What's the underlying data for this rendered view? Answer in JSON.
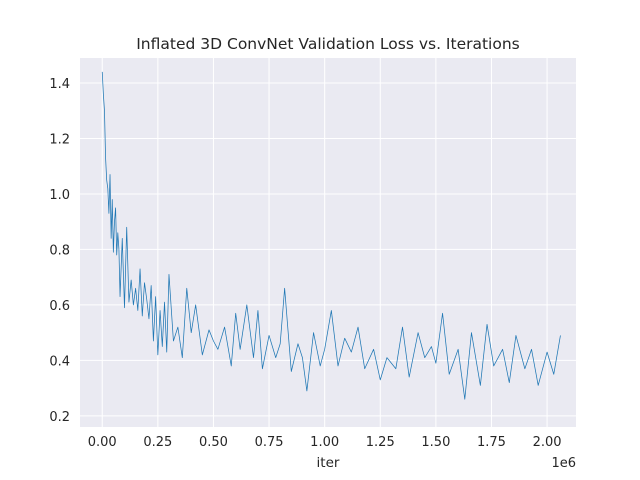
{
  "chart_data": {
    "type": "line",
    "title": "Inflated 3D ConvNet Validation Loss vs. Iterations",
    "xlabel": "iter",
    "ylabel": "",
    "x_offset_label": "1e6",
    "xlim": [
      -0.1,
      2.13
    ],
    "ylim": [
      0.16,
      1.49
    ],
    "x_ticks": [
      0.0,
      0.25,
      0.5,
      0.75,
      1.0,
      1.25,
      1.5,
      1.75,
      2.0
    ],
    "x_tick_labels": [
      "0.00",
      "0.25",
      "0.50",
      "0.75",
      "1.00",
      "1.25",
      "1.50",
      "1.75",
      "2.00"
    ],
    "y_ticks": [
      0.2,
      0.4,
      0.6,
      0.8,
      1.0,
      1.2,
      1.4
    ],
    "y_tick_labels": [
      "0.2",
      "0.4",
      "0.6",
      "0.8",
      "1.0",
      "1.2",
      "1.4"
    ],
    "grid": true,
    "legend": "none",
    "line_color": "#1f77b4",
    "background_color": "#eaeaf2",
    "series": [
      {
        "x": [
          0.0,
          0.005,
          0.01,
          0.015,
          0.02,
          0.025,
          0.03,
          0.035,
          0.04,
          0.045,
          0.05,
          0.055,
          0.06,
          0.065,
          0.07,
          0.075,
          0.08,
          0.09,
          0.1,
          0.11,
          0.12,
          0.13,
          0.14,
          0.15,
          0.16,
          0.17,
          0.18,
          0.19,
          0.2,
          0.21,
          0.22,
          0.23,
          0.24,
          0.25,
          0.26,
          0.27,
          0.28,
          0.29,
          0.3,
          0.32,
          0.34,
          0.36,
          0.38,
          0.4,
          0.42,
          0.45,
          0.48,
          0.5,
          0.52,
          0.55,
          0.58,
          0.6,
          0.62,
          0.65,
          0.68,
          0.7,
          0.72,
          0.75,
          0.78,
          0.8,
          0.82,
          0.85,
          0.88,
          0.9,
          0.92,
          0.95,
          0.98,
          1.0,
          1.03,
          1.06,
          1.09,
          1.12,
          1.15,
          1.18,
          1.22,
          1.25,
          1.28,
          1.32,
          1.35,
          1.38,
          1.42,
          1.45,
          1.48,
          1.5,
          1.53,
          1.56,
          1.6,
          1.63,
          1.66,
          1.7,
          1.73,
          1.76,
          1.8,
          1.83,
          1.86,
          1.9,
          1.93,
          1.96,
          2.0,
          2.03,
          2.06
        ],
        "y": [
          1.44,
          1.36,
          1.3,
          1.13,
          1.05,
          1.02,
          0.93,
          1.07,
          0.84,
          0.98,
          0.79,
          0.9,
          0.95,
          0.78,
          0.86,
          0.8,
          0.63,
          0.84,
          0.59,
          0.88,
          0.61,
          0.69,
          0.6,
          0.66,
          0.58,
          0.73,
          0.56,
          0.68,
          0.62,
          0.55,
          0.67,
          0.47,
          0.63,
          0.42,
          0.58,
          0.45,
          0.61,
          0.43,
          0.71,
          0.47,
          0.52,
          0.41,
          0.66,
          0.5,
          0.6,
          0.42,
          0.51,
          0.47,
          0.44,
          0.52,
          0.38,
          0.57,
          0.44,
          0.6,
          0.41,
          0.58,
          0.37,
          0.49,
          0.41,
          0.46,
          0.66,
          0.36,
          0.46,
          0.41,
          0.29,
          0.5,
          0.38,
          0.44,
          0.58,
          0.38,
          0.48,
          0.43,
          0.52,
          0.37,
          0.44,
          0.33,
          0.41,
          0.37,
          0.52,
          0.34,
          0.5,
          0.41,
          0.45,
          0.39,
          0.57,
          0.35,
          0.44,
          0.26,
          0.5,
          0.31,
          0.53,
          0.38,
          0.44,
          0.32,
          0.49,
          0.37,
          0.44,
          0.31,
          0.43,
          0.35,
          0.49
        ]
      }
    ]
  }
}
